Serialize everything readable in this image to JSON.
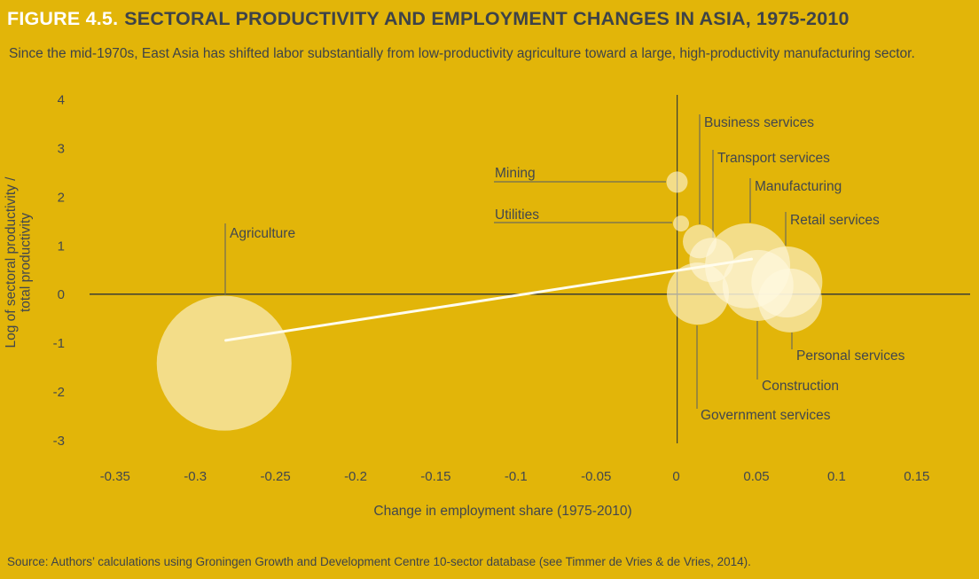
{
  "figure": {
    "label": "FIGURE 4.5.",
    "title": "SECTORAL PRODUCTIVITY AND EMPLOYMENT CHANGES IN ASIA, 1975-2010",
    "subtitle": "Since the mid-1970s, East Asia has shifted labor substantially from low-productivity agriculture toward a large, high-productivity manufacturing sector.",
    "source": "Source: Authors’ calculations using Groningen Growth and Development Centre 10-sector database (see Timmer de Vries & de Vries, 2014)."
  },
  "colors": {
    "background": "#E2B509",
    "bubble_fill": "rgba(255,249,224,0.60)",
    "axis_line": "#3C3E33",
    "leader_line": "#6E6C57",
    "text": "#42474D",
    "figure_label_text": "#FFFFFF",
    "title_text": "#3E4348",
    "trend_line": "#FFFCEC"
  },
  "chart_data": {
    "type": "scatter",
    "subtype": "bubble",
    "xlabel": "Change in employment share (1975-2010)",
    "ylabel_lines": [
      "Log of sectoral productivity /",
      "total productivity"
    ],
    "xlim": [
      -0.39,
      0.185
    ],
    "ylim": [
      -3.6,
      4.3
    ],
    "grid": false,
    "x_ticks": [
      {
        "v": -0.35,
        "label": "-0.35"
      },
      {
        "v": -0.3,
        "label": "-0.3"
      },
      {
        "v": -0.25,
        "label": "-0.25"
      },
      {
        "v": -0.2,
        "label": "-0.2"
      },
      {
        "v": -0.15,
        "label": "-0.15"
      },
      {
        "v": -0.1,
        "label": "-0.1"
      },
      {
        "v": -0.05,
        "label": "-0.05"
      },
      {
        "v": 0,
        "label": "0"
      },
      {
        "v": 0.05,
        "label": "0.05"
      },
      {
        "v": 0.1,
        "label": "0.1"
      },
      {
        "v": 0.15,
        "label": "0.15"
      }
    ],
    "y_ticks": [
      {
        "v": 4,
        "label": "4"
      },
      {
        "v": 3,
        "label": "3"
      },
      {
        "v": 2,
        "label": "2"
      },
      {
        "v": 1,
        "label": "1"
      },
      {
        "v": 0,
        "label": "0"
      },
      {
        "v": -1,
        "label": "-1"
      },
      {
        "v": -2,
        "label": "-2"
      },
      {
        "v": -3,
        "label": "-3"
      }
    ],
    "points": [
      {
        "sector": "Agriculture",
        "x": -0.282,
        "y": -1.42,
        "r": 76
      },
      {
        "sector": "Mining",
        "x": 0.0005,
        "y": 2.3,
        "r": 12
      },
      {
        "sector": "Utilities",
        "x": 0.003,
        "y": 1.45,
        "r": 9
      },
      {
        "sector": "Business services",
        "x": 0.0146,
        "y": 1.08,
        "r": 19
      },
      {
        "sector": "Transport services",
        "x": 0.022,
        "y": 0.7,
        "r": 25
      },
      {
        "sector": "Manufacturing",
        "x": 0.0445,
        "y": 0.58,
        "r": 48
      },
      {
        "sector": "Retail services",
        "x": 0.069,
        "y": 0.25,
        "r": 40
      },
      {
        "sector": "Personal services",
        "x": 0.071,
        "y": -0.13,
        "r": 36
      },
      {
        "sector": "Construction",
        "x": 0.051,
        "y": 0.18,
        "r": 40
      },
      {
        "sector": "Government services",
        "x": 0.0135,
        "y": 0.01,
        "r": 35
      }
    ],
    "trend_line": {
      "x1": -0.281,
      "y1": -0.95,
      "x2": 0.047,
      "y2": 0.72
    }
  }
}
